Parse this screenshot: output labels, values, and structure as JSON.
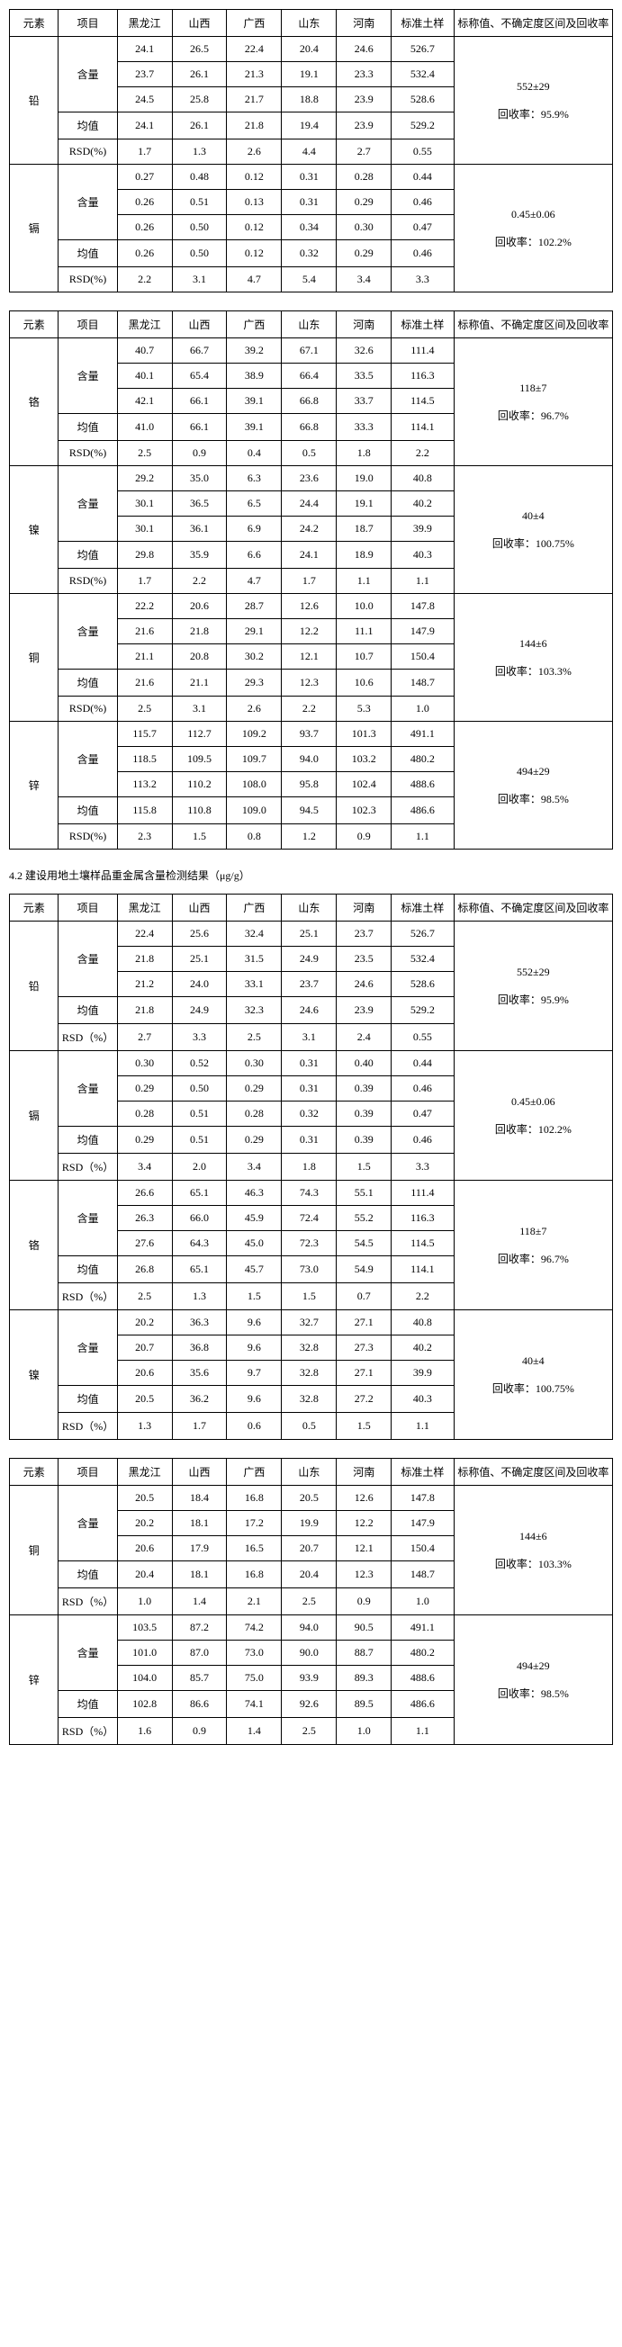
{
  "caption": "4.2 建设用地土壤样品重金属含量检测结果（μg/g）",
  "headers": {
    "element": "元素",
    "item": "项目",
    "cols": [
      "黑龙江",
      "山西",
      "广西",
      "山东",
      "河南"
    ],
    "std": "标准土样",
    "summary": "标称值、不确定度区间及回收率"
  },
  "rowLabels": {
    "hanliang": "含量",
    "mean": "均值",
    "rsd": "RSD(%)",
    "rsd2": "RSD（%）",
    "recovery": "回收率："
  },
  "tables": [
    {
      "rsdLabel": "rsd",
      "groups": [
        {
          "name": "铅",
          "rows": [
            [
              "24.1",
              "26.5",
              "22.4",
              "20.4",
              "24.6",
              "526.7"
            ],
            [
              "23.7",
              "26.1",
              "21.3",
              "19.1",
              "23.3",
              "532.4"
            ],
            [
              "24.5",
              "25.8",
              "21.7",
              "18.8",
              "23.9",
              "528.6"
            ]
          ],
          "mean": [
            "24.1",
            "26.1",
            "21.8",
            "19.4",
            "23.9",
            "529.2"
          ],
          "rsd": [
            "1.7",
            "1.3",
            "2.6",
            "4.4",
            "2.7",
            "0.55"
          ],
          "nominal": "552±29",
          "recovery": "95.9%"
        },
        {
          "name": "镉",
          "rows": [
            [
              "0.27",
              "0.48",
              "0.12",
              "0.31",
              "0.28",
              "0.44"
            ],
            [
              "0.26",
              "0.51",
              "0.13",
              "0.31",
              "0.29",
              "0.46"
            ],
            [
              "0.26",
              "0.50",
              "0.12",
              "0.34",
              "0.30",
              "0.47"
            ]
          ],
          "mean": [
            "0.26",
            "0.50",
            "0.12",
            "0.32",
            "0.29",
            "0.46"
          ],
          "rsd": [
            "2.2",
            "3.1",
            "4.7",
            "5.4",
            "3.4",
            "3.3"
          ],
          "nominal": "0.45±0.06",
          "recovery": "102.2%"
        }
      ]
    },
    {
      "rsdLabel": "rsd",
      "groups": [
        {
          "name": "铬",
          "rows": [
            [
              "40.7",
              "66.7",
              "39.2",
              "67.1",
              "32.6",
              "111.4"
            ],
            [
              "40.1",
              "65.4",
              "38.9",
              "66.4",
              "33.5",
              "116.3"
            ],
            [
              "42.1",
              "66.1",
              "39.1",
              "66.8",
              "33.7",
              "114.5"
            ]
          ],
          "mean": [
            "41.0",
            "66.1",
            "39.1",
            "66.8",
            "33.3",
            "114.1"
          ],
          "rsd": [
            "2.5",
            "0.9",
            "0.4",
            "0.5",
            "1.8",
            "2.2"
          ],
          "nominal": "118±7",
          "recovery": "96.7%"
        },
        {
          "name": "镍",
          "rows": [
            [
              "29.2",
              "35.0",
              "6.3",
              "23.6",
              "19.0",
              "40.8"
            ],
            [
              "30.1",
              "36.5",
              "6.5",
              "24.4",
              "19.1",
              "40.2"
            ],
            [
              "30.1",
              "36.1",
              "6.9",
              "24.2",
              "18.7",
              "39.9"
            ]
          ],
          "mean": [
            "29.8",
            "35.9",
            "6.6",
            "24.1",
            "18.9",
            "40.3"
          ],
          "rsd": [
            "1.7",
            "2.2",
            "4.7",
            "1.7",
            "1.1",
            "1.1"
          ],
          "nominal": "40±4",
          "recovery": "100.75%"
        },
        {
          "name": "铜",
          "rows": [
            [
              "22.2",
              "20.6",
              "28.7",
              "12.6",
              "10.0",
              "147.8"
            ],
            [
              "21.6",
              "21.8",
              "29.1",
              "12.2",
              "11.1",
              "147.9"
            ],
            [
              "21.1",
              "20.8",
              "30.2",
              "12.1",
              "10.7",
              "150.4"
            ]
          ],
          "mean": [
            "21.6",
            "21.1",
            "29.3",
            "12.3",
            "10.6",
            "148.7"
          ],
          "rsd": [
            "2.5",
            "3.1",
            "2.6",
            "2.2",
            "5.3",
            "1.0"
          ],
          "nominal": "144±6",
          "recovery": "103.3%"
        },
        {
          "name": "锌",
          "rows": [
            [
              "115.7",
              "112.7",
              "109.2",
              "93.7",
              "101.3",
              "491.1"
            ],
            [
              "118.5",
              "109.5",
              "109.7",
              "94.0",
              "103.2",
              "480.2"
            ],
            [
              "113.2",
              "110.2",
              "108.0",
              "95.8",
              "102.4",
              "488.6"
            ]
          ],
          "mean": [
            "115.8",
            "110.8",
            "109.0",
            "94.5",
            "102.3",
            "486.6"
          ],
          "rsd": [
            "2.3",
            "1.5",
            "0.8",
            "1.2",
            "0.9",
            "1.1"
          ],
          "nominal": "494±29",
          "recovery": "98.5%"
        }
      ]
    },
    {
      "rsdLabel": "rsd2",
      "groups": [
        {
          "name": "铅",
          "rows": [
            [
              "22.4",
              "25.6",
              "32.4",
              "25.1",
              "23.7",
              "526.7"
            ],
            [
              "21.8",
              "25.1",
              "31.5",
              "24.9",
              "23.5",
              "532.4"
            ],
            [
              "21.2",
              "24.0",
              "33.1",
              "23.7",
              "24.6",
              "528.6"
            ]
          ],
          "mean": [
            "21.8",
            "24.9",
            "32.3",
            "24.6",
            "23.9",
            "529.2"
          ],
          "rsd": [
            "2.7",
            "3.3",
            "2.5",
            "3.1",
            "2.4",
            "0.55"
          ],
          "nominal": "552±29",
          "recovery": "95.9%"
        },
        {
          "name": "镉",
          "rows": [
            [
              "0.30",
              "0.52",
              "0.30",
              "0.31",
              "0.40",
              "0.44"
            ],
            [
              "0.29",
              "0.50",
              "0.29",
              "0.31",
              "0.39",
              "0.46"
            ],
            [
              "0.28",
              "0.51",
              "0.28",
              "0.32",
              "0.39",
              "0.47"
            ]
          ],
          "mean": [
            "0.29",
            "0.51",
            "0.29",
            "0.31",
            "0.39",
            "0.46"
          ],
          "rsd": [
            "3.4",
            "2.0",
            "3.4",
            "1.8",
            "1.5",
            "3.3"
          ],
          "nominal": "0.45±0.06",
          "recovery": "102.2%"
        },
        {
          "name": "铬",
          "rows": [
            [
              "26.6",
              "65.1",
              "46.3",
              "74.3",
              "55.1",
              "111.4"
            ],
            [
              "26.3",
              "66.0",
              "45.9",
              "72.4",
              "55.2",
              "116.3"
            ],
            [
              "27.6",
              "64.3",
              "45.0",
              "72.3",
              "54.5",
              "114.5"
            ]
          ],
          "mean": [
            "26.8",
            "65.1",
            "45.7",
            "73.0",
            "54.9",
            "114.1"
          ],
          "rsd": [
            "2.5",
            "1.3",
            "1.5",
            "1.5",
            "0.7",
            "2.2"
          ],
          "nominal": "118±7",
          "recovery": "96.7%"
        },
        {
          "name": "镍",
          "rows": [
            [
              "20.2",
              "36.3",
              "9.6",
              "32.7",
              "27.1",
              "40.8"
            ],
            [
              "20.7",
              "36.8",
              "9.6",
              "32.8",
              "27.3",
              "40.2"
            ],
            [
              "20.6",
              "35.6",
              "9.7",
              "32.8",
              "27.1",
              "39.9"
            ]
          ],
          "mean": [
            "20.5",
            "36.2",
            "9.6",
            "32.8",
            "27.2",
            "40.3"
          ],
          "rsd": [
            "1.3",
            "1.7",
            "0.6",
            "0.5",
            "1.5",
            "1.1"
          ],
          "nominal": "40±4",
          "recovery": "100.75%"
        }
      ]
    },
    {
      "rsdLabel": "rsd2",
      "groups": [
        {
          "name": "铜",
          "rows": [
            [
              "20.5",
              "18.4",
              "16.8",
              "20.5",
              "12.6",
              "147.8"
            ],
            [
              "20.2",
              "18.1",
              "17.2",
              "19.9",
              "12.2",
              "147.9"
            ],
            [
              "20.6",
              "17.9",
              "16.5",
              "20.7",
              "12.1",
              "150.4"
            ]
          ],
          "mean": [
            "20.4",
            "18.1",
            "16.8",
            "20.4",
            "12.3",
            "148.7"
          ],
          "rsd": [
            "1.0",
            "1.4",
            "2.1",
            "2.5",
            "0.9",
            "1.0"
          ],
          "nominal": "144±6",
          "recovery": "103.3%"
        },
        {
          "name": "锌",
          "rows": [
            [
              "103.5",
              "87.2",
              "74.2",
              "94.0",
              "90.5",
              "491.1"
            ],
            [
              "101.0",
              "87.0",
              "73.0",
              "90.0",
              "88.7",
              "480.2"
            ],
            [
              "104.0",
              "85.7",
              "75.0",
              "93.9",
              "89.3",
              "488.6"
            ]
          ],
          "mean": [
            "102.8",
            "86.6",
            "74.1",
            "92.6",
            "89.5",
            "486.6"
          ],
          "rsd": [
            "1.6",
            "0.9",
            "1.4",
            "2.5",
            "1.0",
            "1.1"
          ],
          "nominal": "494±29",
          "recovery": "98.5%"
        }
      ]
    }
  ]
}
